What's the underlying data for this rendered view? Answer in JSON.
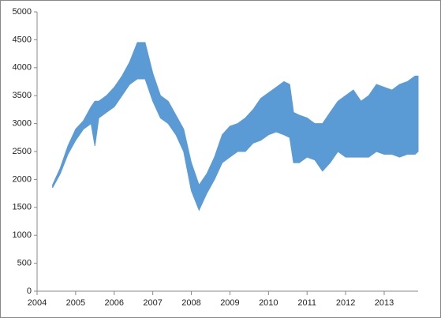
{
  "chart_data": {
    "type": "band",
    "color": "#5b9bd5",
    "x": [
      2004.4,
      2004.6,
      2004.8,
      2005.0,
      2005.2,
      2005.4,
      2005.5,
      2005.6,
      2005.8,
      2006.0,
      2006.2,
      2006.4,
      2006.6,
      2006.8,
      2007.0,
      2007.2,
      2007.4,
      2007.6,
      2007.8,
      2008.0,
      2008.2,
      2008.4,
      2008.6,
      2008.8,
      2009.0,
      2009.2,
      2009.4,
      2009.6,
      2009.8,
      2010.0,
      2010.2,
      2010.4,
      2010.55,
      2010.65,
      2010.8,
      2011.0,
      2011.2,
      2011.4,
      2011.6,
      2011.8,
      2012.0,
      2012.2,
      2012.4,
      2012.6,
      2012.8,
      2013.0,
      2013.2,
      2013.4,
      2013.6,
      2013.8,
      2013.88
    ],
    "high": [
      1900,
      2200,
      2600,
      2900,
      3050,
      3300,
      3400,
      3400,
      3500,
      3650,
      3850,
      4100,
      4450,
      4450,
      3900,
      3500,
      3400,
      3150,
      2900,
      2300,
      1900,
      2100,
      2400,
      2800,
      2950,
      3000,
      3100,
      3250,
      3450,
      3550,
      3650,
      3750,
      3700,
      3200,
      3150,
      3100,
      3000,
      3000,
      3200,
      3400,
      3500,
      3600,
      3400,
      3500,
      3700,
      3650,
      3600,
      3700,
      3750,
      3850,
      3850
    ],
    "low": [
      1850,
      2100,
      2450,
      2700,
      2900,
      3000,
      2600,
      3100,
      3200,
      3300,
      3500,
      3700,
      3800,
      3800,
      3400,
      3100,
      3000,
      2800,
      2500,
      1800,
      1450,
      1750,
      2000,
      2300,
      2400,
      2500,
      2500,
      2650,
      2700,
      2800,
      2850,
      2800,
      2750,
      2300,
      2300,
      2400,
      2350,
      2150,
      2300,
      2500,
      2400,
      2400,
      2400,
      2400,
      2500,
      2450,
      2450,
      2400,
      2450,
      2450,
      2500
    ],
    "xlim": [
      2004,
      2013.88
    ],
    "xticks": [
      2004,
      2005,
      2006,
      2007,
      2008,
      2009,
      2010,
      2011,
      2012,
      2013
    ],
    "ylim": [
      0,
      5000
    ],
    "yticks": [
      0,
      500,
      1000,
      1500,
      2000,
      2500,
      3000,
      3500,
      4000,
      4500,
      5000
    ]
  }
}
